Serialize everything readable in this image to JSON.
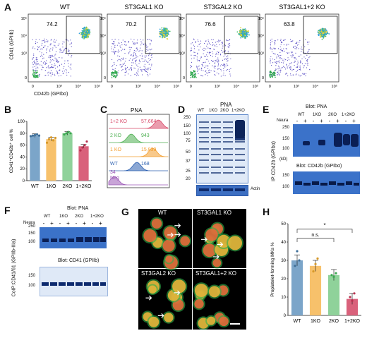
{
  "panel_letters": [
    "A",
    "B",
    "C",
    "D",
    "E",
    "F",
    "G",
    "H"
  ],
  "panelA": {
    "y_label": "CD41 (GPIIb)",
    "x_label": "CD42b (GPIbα)",
    "tick_labels": [
      "0",
      "10³",
      "10⁴",
      "10⁵"
    ],
    "plots": [
      {
        "title": "WT",
        "gate_value": "74.2"
      },
      {
        "title": "ST3GAL1 KO",
        "gate_value": "70.2"
      },
      {
        "title": "ST3GAL2 KO",
        "gate_value": "76.6"
      },
      {
        "title": "ST3GAL1+2 KO",
        "gate_value": "63.8"
      }
    ]
  },
  "panelB": {
    "chart_data": {
      "type": "bar",
      "categories": [
        "WT",
        "1KO",
        "2KO",
        "1+2KO"
      ],
      "values": [
        76,
        70,
        80,
        58
      ],
      "points": [
        [
          75,
          76,
          77,
          78,
          76
        ],
        [
          64,
          70,
          73,
          68,
          72
        ],
        [
          78,
          80,
          82,
          80
        ],
        [
          51,
          56,
          60,
          66
        ]
      ],
      "ylabel": "CD41⁺CD42b⁺ cell %",
      "ylim": [
        0,
        100
      ],
      "yticks": [
        "0",
        "20",
        "40",
        "60",
        "80",
        "100"
      ],
      "colors": [
        "#7ba5c9",
        "#f7c16b",
        "#8fd29a",
        "#d9617b"
      ]
    }
  },
  "panelC": {
    "title": "PNA",
    "tracks": [
      {
        "label": "1+2 KO",
        "value": "57,664",
        "color": "#d94a6a"
      },
      {
        "label": "2 KO",
        "value": "943",
        "color": "#4caf50"
      },
      {
        "label": "1 KO",
        "value": "15,839",
        "color": "#f39c2b"
      },
      {
        "label": "WT",
        "value": "168",
        "color": "#2b5fb0"
      },
      {
        "label": "Neg",
        "value": "34",
        "color": "#9b59b6"
      }
    ]
  },
  "panelD": {
    "title": "PNA",
    "lanes": [
      "WT",
      "1KO",
      "2KO",
      "1+2KO"
    ],
    "markers": [
      "250",
      "150",
      "100",
      "75",
      "50",
      "37",
      "25",
      "20"
    ],
    "loading_label": "Actin"
  },
  "panelE": {
    "blot_title": "Blot: PNA",
    "lanes": [
      "WT",
      "1KO",
      "2KO",
      "1+2KO"
    ],
    "neura_label": "Neura",
    "signs": [
      "-",
      "+",
      "-",
      "+",
      "-",
      "+",
      "-",
      "+"
    ],
    "markers": [
      "250",
      "150",
      "100"
    ],
    "kd_label": "(kD)",
    "lower_title": "Blot: CD42b (GPIbα)",
    "lower_markers": [
      "150",
      "100"
    ],
    "side_label": "IP:CD42b (GPIbα)"
  },
  "panelF": {
    "blot_title": "Blot: PNA",
    "lanes": [
      "WT",
      "1KO",
      "2KO",
      "1+2KO"
    ],
    "neura_label": "Neura",
    "signs": [
      "-",
      "+",
      "-",
      "+",
      "-",
      "+",
      "-",
      "+"
    ],
    "markers": [
      "250",
      "150",
      "100"
    ],
    "lower_title": "Blot: CD41 (GPIIb)",
    "lower_markers": [
      "150",
      "100"
    ],
    "side_label": "CoIP:CD41/61 (GPIIb-IIIa)"
  },
  "panelG": {
    "images": [
      "WT",
      "ST3GAL1 KO",
      "ST3GAL2 KO",
      "ST3GAL1+2 KO"
    ]
  },
  "panelH": {
    "chart_data": {
      "type": "bar",
      "categories": [
        "WT",
        "1KO",
        "2KO",
        "1+2KO"
      ],
      "values": [
        30,
        27,
        22,
        9
      ],
      "points": [
        [
          27,
          35,
          30
        ],
        [
          24,
          28,
          31
        ],
        [
          22,
          21,
          23
        ],
        [
          10,
          8,
          12
        ]
      ],
      "ylabel": "Proplatelet-forming MKs %",
      "ylim": [
        0,
        50
      ],
      "yticks": [
        "0",
        "10",
        "20",
        "30",
        "40",
        "50"
      ],
      "colors": [
        "#7ba5c9",
        "#f7c16b",
        "#8fd29a",
        "#d9617b"
      ],
      "annotations": [
        "n.s.",
        "*"
      ]
    }
  }
}
